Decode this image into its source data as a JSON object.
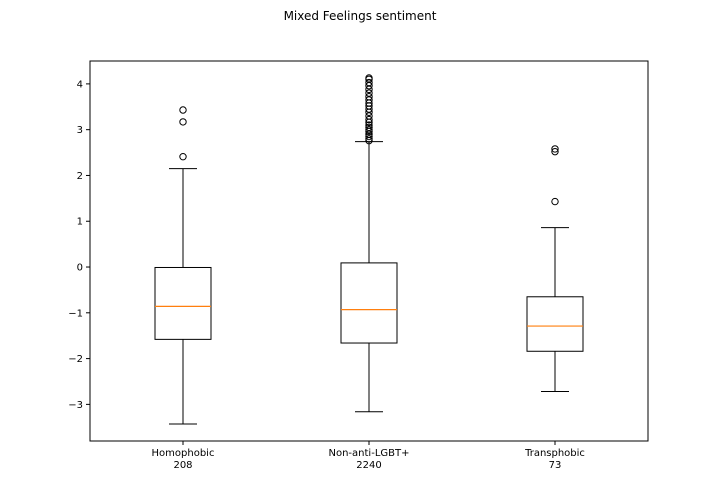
{
  "chart_data": {
    "type": "boxplot",
    "title": "Mixed Feelings sentiment",
    "xlabel": "",
    "ylabel": "",
    "ylim": [
      -3.8,
      4.5
    ],
    "yticks": [
      -3,
      -2,
      -1,
      0,
      1,
      2,
      3,
      4
    ],
    "grid": false,
    "median_color": "#ff7f0e",
    "box_color": "#000000",
    "categories": [
      {
        "label": "Homophobic",
        "count": "208"
      },
      {
        "label": "Non-anti-LGBT+",
        "count": "2240"
      },
      {
        "label": "Transphobic",
        "count": "73"
      }
    ],
    "boxes": [
      {
        "whisker_low": -3.43,
        "q1": -1.58,
        "median": -0.86,
        "q3": -0.01,
        "whisker_high": 2.15,
        "outliers": [
          2.41,
          3.17,
          3.43
        ]
      },
      {
        "whisker_low": -3.16,
        "q1": -1.66,
        "median": -0.93,
        "q3": 0.09,
        "whisker_high": 2.74,
        "outliers": [
          2.76,
          2.8,
          2.85,
          2.9,
          2.96,
          3.0,
          3.05,
          3.1,
          3.16,
          3.22,
          3.3,
          3.38,
          3.45,
          3.52,
          3.58,
          3.65,
          3.72,
          3.8,
          3.88,
          3.96,
          4.03,
          4.1,
          4.13
        ]
      },
      {
        "whisker_low": -2.72,
        "q1": -1.84,
        "median": -1.29,
        "q3": -0.65,
        "whisker_high": 0.86,
        "outliers": [
          1.43,
          2.52,
          2.58
        ]
      }
    ]
  }
}
